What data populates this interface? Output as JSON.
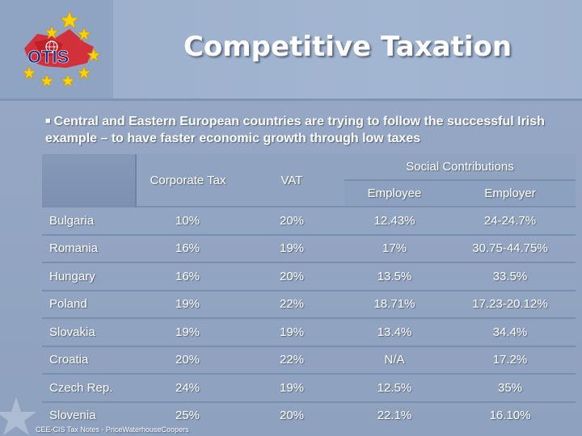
{
  "slide": {
    "title": "Competitive Taxation",
    "intro": "Central and Eastern European countries are trying to follow the successful Irish example – to have faster economic growth through low taxes",
    "footer": "CEE-CIS Tax Notes - PriceWaterhouseCoopers",
    "logo_text": "OTIS",
    "icons": [
      "star-icon",
      "globe-icon"
    ],
    "colors": {
      "background": "#97a9c6",
      "star": "#ffd200",
      "logo_red": "#d9242b",
      "text": "#ffffff"
    }
  },
  "table": {
    "headers": {
      "corporate_tax": "Corporate Tax",
      "vat": "VAT",
      "social": "Social Contributions",
      "employee": "Employee",
      "employer": "Employer"
    },
    "rows": [
      {
        "country": "Bulgaria",
        "corporate_tax": "10%",
        "vat": "20%",
        "employee": "12.43%",
        "employer": "24-24.7%"
      },
      {
        "country": "Romania",
        "corporate_tax": "16%",
        "vat": "19%",
        "employee": "17%",
        "employer": "30.75-44.75%"
      },
      {
        "country": "Hungary",
        "corporate_tax": "16%",
        "vat": "20%",
        "employee": "13.5%",
        "employer": "33.5%"
      },
      {
        "country": "Poland",
        "corporate_tax": "19%",
        "vat": "22%",
        "employee": "18.71%",
        "employer": "17.23-20.12%"
      },
      {
        "country": "Slovakia",
        "corporate_tax": "19%",
        "vat": "19%",
        "employee": "13.4%",
        "employer": "34.4%"
      },
      {
        "country": "Croatia",
        "corporate_tax": "20%",
        "vat": "22%",
        "employee": "N/A",
        "employer": "17.2%"
      },
      {
        "country": "Czech Rep.",
        "corporate_tax": "24%",
        "vat": "19%",
        "employee": "12.5%",
        "employer": "35%"
      },
      {
        "country": "Slovenia",
        "corporate_tax": "25%",
        "vat": "20%",
        "employee": "22.1%",
        "employer": "16.10%"
      }
    ]
  }
}
